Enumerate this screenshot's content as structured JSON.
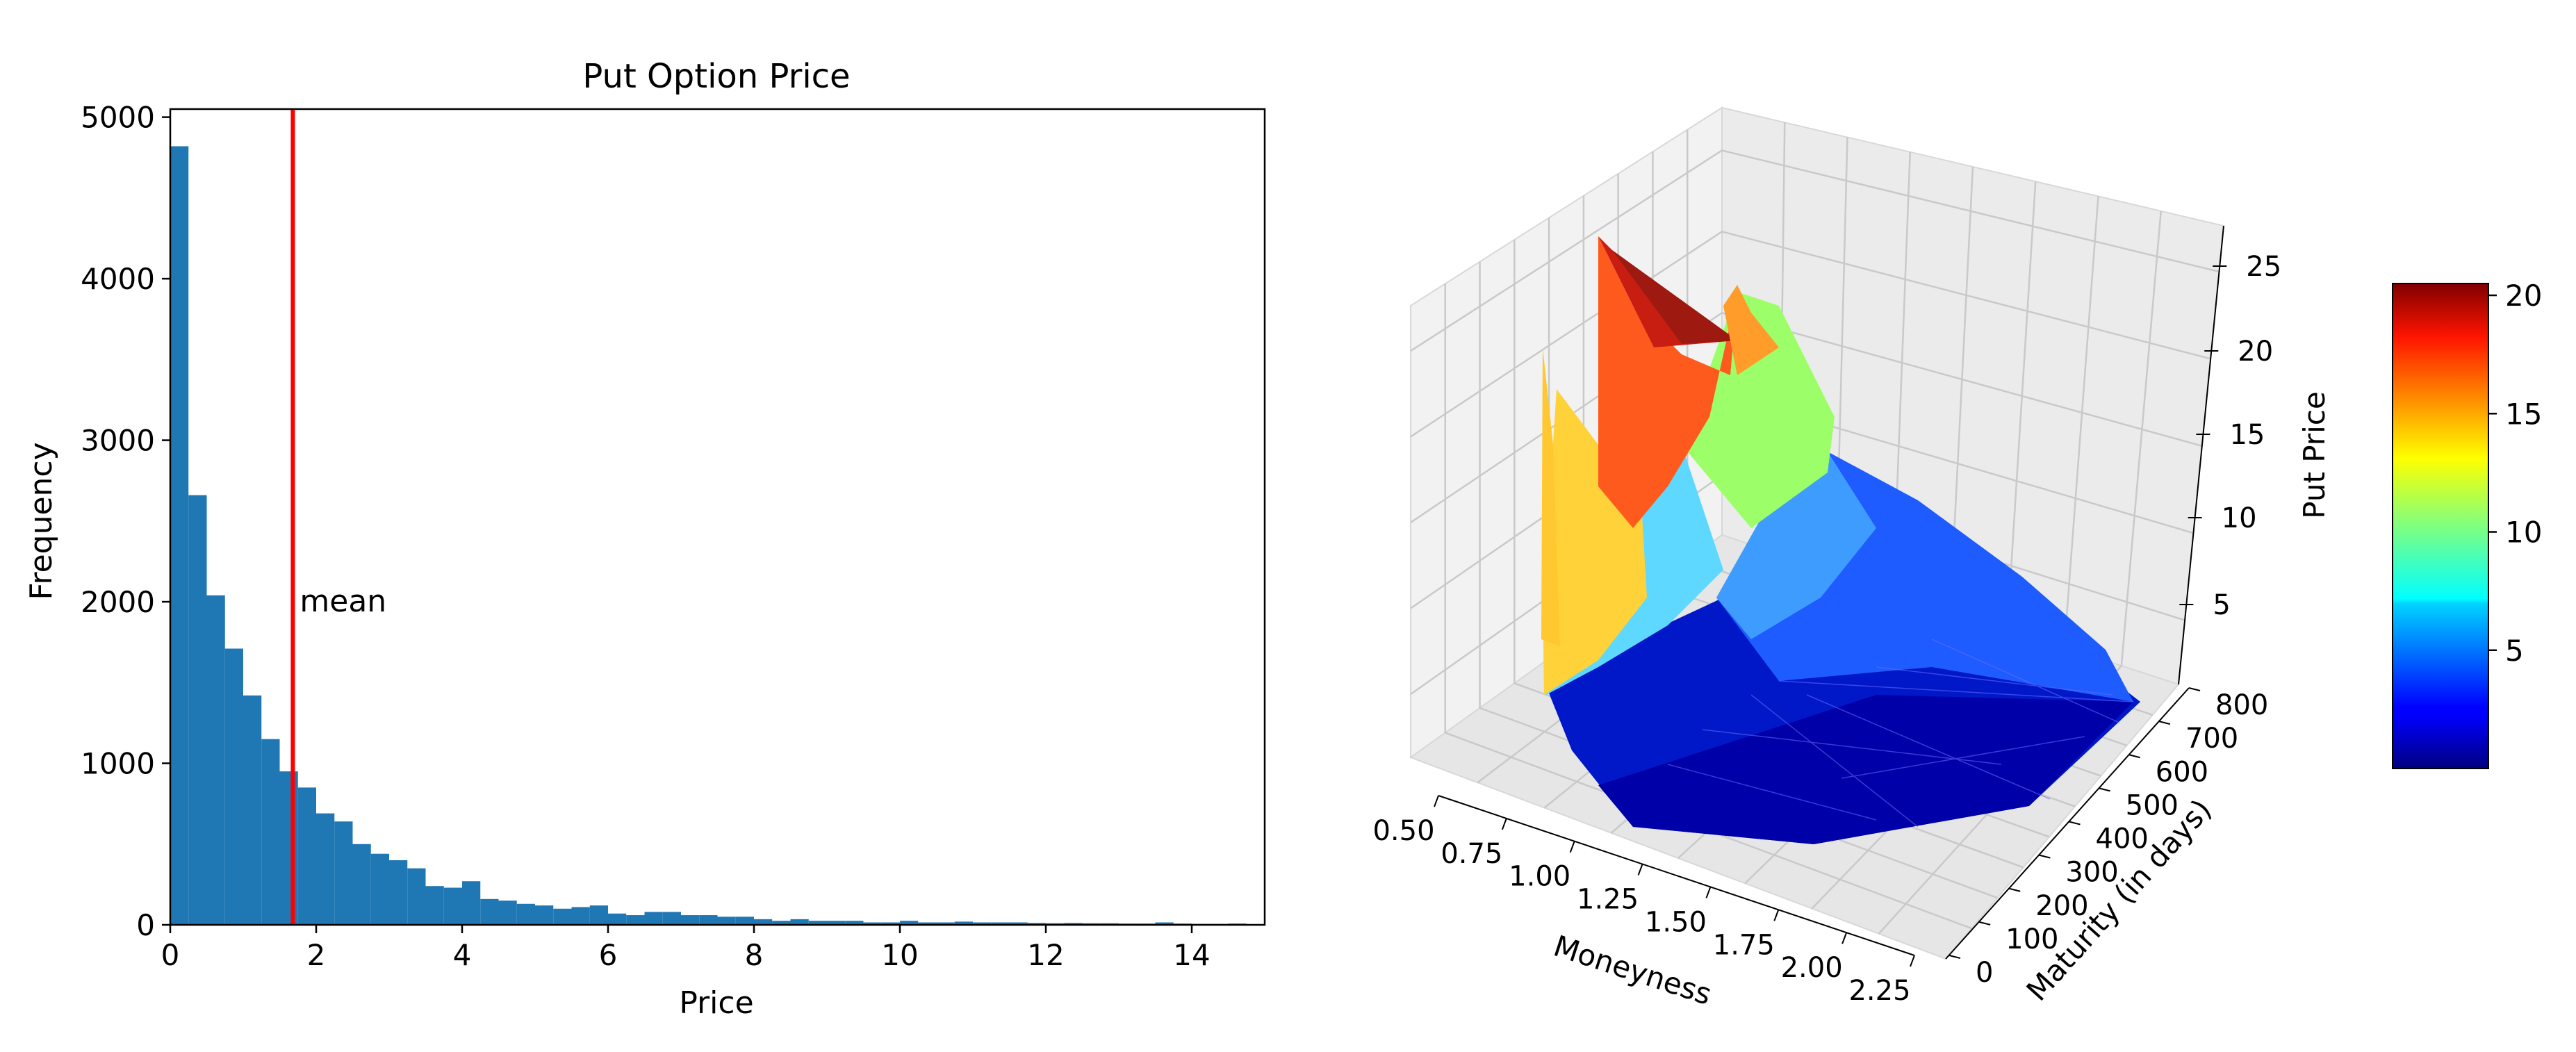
{
  "chart_data": [
    {
      "type": "bar",
      "subtype": "histogram",
      "title": "Put Option Price",
      "xlabel": "Price",
      "ylabel": "Frequency",
      "xlim": [
        0,
        15
      ],
      "ylim": [
        0,
        5050
      ],
      "xticks": [
        0,
        2,
        4,
        6,
        8,
        10,
        12,
        14
      ],
      "yticks": [
        0,
        1000,
        2000,
        3000,
        4000,
        5000
      ],
      "bin_width": 0.25,
      "bins_start": 0,
      "values": [
        4820,
        2660,
        2040,
        1710,
        1420,
        1150,
        950,
        850,
        690,
        640,
        500,
        440,
        400,
        350,
        240,
        230,
        270,
        160,
        150,
        130,
        120,
        100,
        110,
        120,
        70,
        60,
        80,
        80,
        60,
        60,
        50,
        50,
        35,
        25,
        35,
        25,
        25,
        25,
        15,
        15,
        25,
        15,
        15,
        20,
        15,
        15,
        15,
        12,
        10,
        12,
        10,
        10,
        8,
        8,
        15,
        8,
        6,
        6,
        8
      ],
      "bar_color": "#1f77b4",
      "mean_line": {
        "x": 1.68,
        "label": "mean",
        "label_y": 2000,
        "color": "#ff0000"
      },
      "grid": false
    },
    {
      "type": "surface3d",
      "xlabel": "Moneyness",
      "ylabel": "Maturity (in days)",
      "zlabel": "Put Price",
      "xticks": [
        "0.50",
        "0.75",
        "1.00",
        "1.25",
        "1.50",
        "1.75",
        "2.00",
        "2.25"
      ],
      "yticks": [
        "0",
        "100",
        "200",
        "300",
        "400",
        "500",
        "600",
        "700",
        "800"
      ],
      "zticks": [
        "5",
        "10",
        "15",
        "20",
        "25"
      ],
      "colormap": "jet",
      "colorbar": {
        "ticks": [
          "5",
          "10",
          "15",
          "20"
        ],
        "min": 0,
        "max": 20.5,
        "placement": "right"
      },
      "grid": true
    }
  ]
}
